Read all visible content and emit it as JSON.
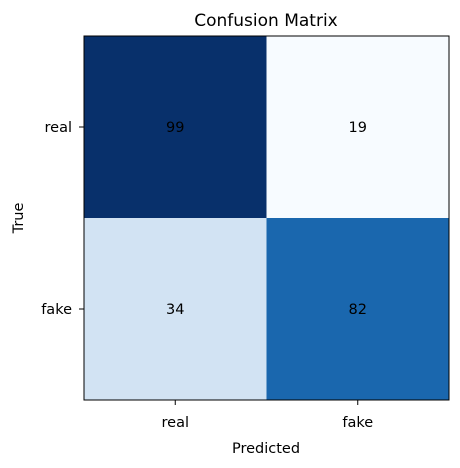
{
  "chart_data": {
    "type": "heatmap",
    "title": "Confusion Matrix",
    "xlabel": "Predicted",
    "ylabel": "True",
    "x_categories": [
      "real",
      "fake"
    ],
    "y_categories": [
      "real",
      "fake"
    ],
    "values": [
      [
        99,
        19
      ],
      [
        34,
        82
      ]
    ],
    "colormap": "Blues",
    "color_range": [
      19,
      99
    ],
    "colors": {
      "low": "#f7fbff",
      "high": "#08306b"
    },
    "grid": false,
    "legend": "none"
  }
}
